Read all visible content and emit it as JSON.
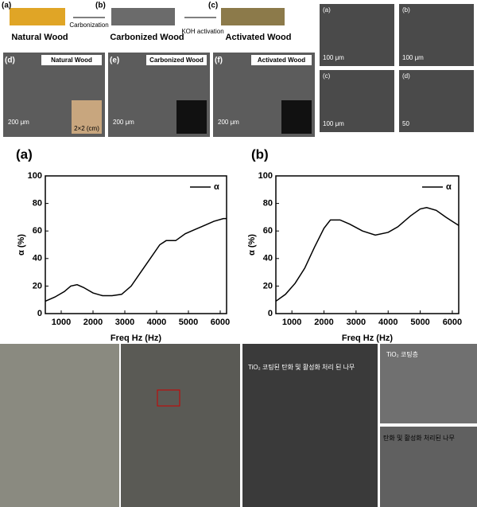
{
  "figure": {
    "schematic": {
      "a": "(a)",
      "natural": "Natural Wood",
      "b": "(b)",
      "carbonized": "Carbonized Wood",
      "c": "(c)",
      "activated": "Activated Wood",
      "step1": "Carbonization",
      "step2": "KOH activation"
    },
    "sem": [
      {
        "label": "(d)",
        "title": "Natural Wood",
        "scale": "200 μm",
        "inset": "2×2 (cm)"
      },
      {
        "label": "(e)",
        "title": "Carbonized Wood",
        "scale": "200 μm"
      },
      {
        "label": "(f)",
        "title": "Activated Wood",
        "scale": "200 μm"
      }
    ],
    "side": [
      {
        "label": "(a)",
        "scale": "100 μm"
      },
      {
        "label": "(b)",
        "scale": "100 μm"
      },
      {
        "label": "(c)",
        "scale": "100 μm"
      },
      {
        "label": "(d)",
        "scale": "50"
      }
    ],
    "photos": {
      "sem_main": "TiO₂ 코팅된 탄화 및 활성화 처리 된 나무",
      "sem_top": "TiO₂ 코팅층",
      "sem_bottom": "탄화 및 활성화 처리된 나무"
    }
  },
  "chart_data": [
    {
      "type": "line",
      "panel": "(a)",
      "xlabel": "Freq Hz (Hz)",
      "ylabel": "α (%)",
      "legend": "upper right",
      "x": [
        500,
        800,
        1100,
        1300,
        1500,
        1700,
        2000,
        2300,
        2600,
        2900,
        3200,
        3500,
        3800,
        4100,
        4300,
        4600,
        4900,
        5200,
        5500,
        5800,
        6100,
        6200
      ],
      "series": [
        {
          "name": "α",
          "color": "#000000",
          "values": [
            9,
            12,
            16,
            20,
            21,
            19,
            15,
            13,
            13,
            14,
            20,
            30,
            40,
            50,
            53,
            53,
            58,
            61,
            64,
            67,
            69,
            69
          ]
        }
      ],
      "xlim": [
        500,
        6200
      ],
      "xticks": [
        1000,
        2000,
        3000,
        4000,
        5000,
        6000
      ],
      "ylim": [
        0,
        100
      ],
      "yticks": [
        0,
        20,
        40,
        60,
        80,
        100
      ]
    },
    {
      "type": "line",
      "panel": "(b)",
      "xlabel": "Freq Hz (Hz)",
      "ylabel": "α (%)",
      "legend": "upper right",
      "x": [
        500,
        800,
        1100,
        1400,
        1700,
        2000,
        2200,
        2500,
        2800,
        3200,
        3600,
        4000,
        4300,
        4700,
        5000,
        5200,
        5500,
        5800,
        6000,
        6200
      ],
      "series": [
        {
          "name": "α",
          "color": "#000000",
          "values": [
            9,
            14,
            22,
            33,
            48,
            62,
            68,
            68,
            65,
            60,
            57,
            59,
            63,
            71,
            76,
            77,
            75,
            70,
            67,
            64
          ]
        }
      ],
      "xlim": [
        500,
        6200
      ],
      "xticks": [
        1000,
        2000,
        3000,
        4000,
        5000,
        6000
      ],
      "ylim": [
        0,
        100
      ],
      "yticks": [
        0,
        20,
        40,
        60,
        80,
        100
      ]
    }
  ]
}
